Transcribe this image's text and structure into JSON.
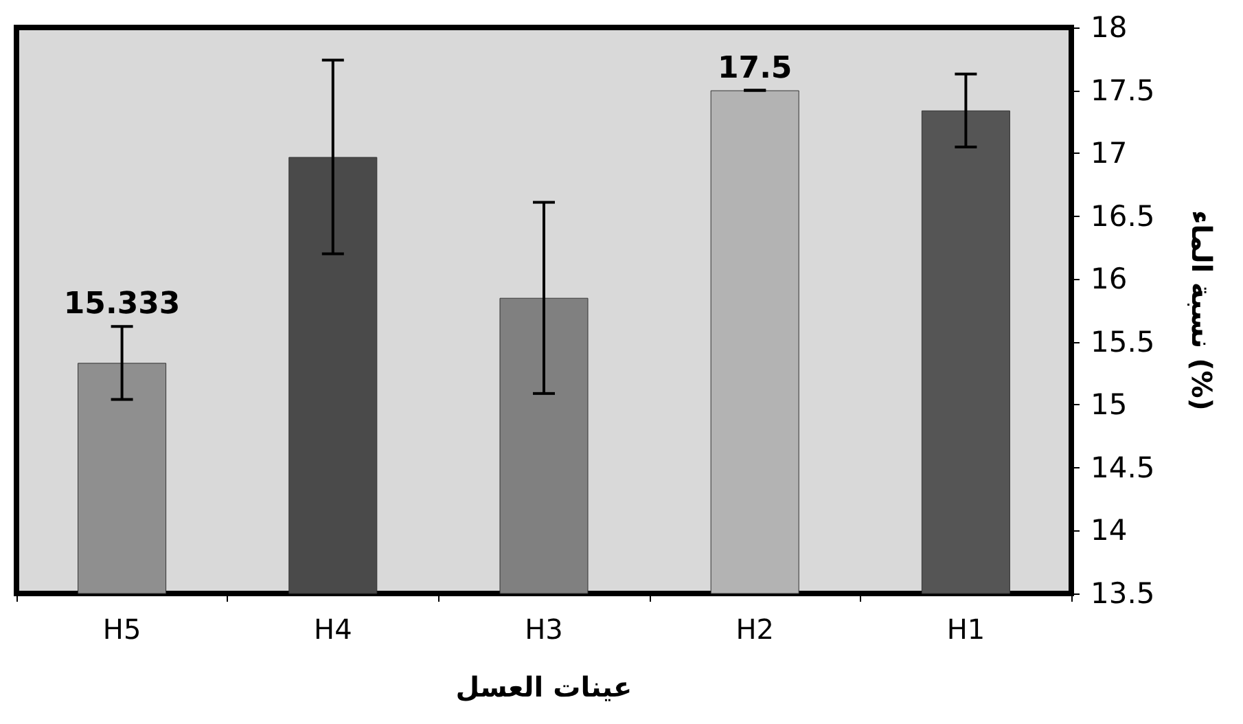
{
  "chart_data": {
    "type": "bar",
    "xlabel": "عينات العسل",
    "ylabel": "نسبة الماء (%)",
    "categories": [
      "H5",
      "H4",
      "H3",
      "H2",
      "H1"
    ],
    "values": [
      15.333,
      16.97,
      15.85,
      17.5,
      17.34
    ],
    "errors": [
      0.29,
      0.77,
      0.76,
      0,
      0.29
    ],
    "colors": [
      "#8f8f8f",
      "#4a4a4a",
      "#808080",
      "#b3b3b3",
      "#555555"
    ],
    "value_labels": [
      "15.333",
      null,
      null,
      "17.5",
      null
    ],
    "ylim": [
      13.5,
      18
    ],
    "yticks": [
      13.5,
      14,
      14.5,
      15,
      15.5,
      16,
      16.5,
      17,
      17.5,
      18
    ],
    "grid": false
  }
}
